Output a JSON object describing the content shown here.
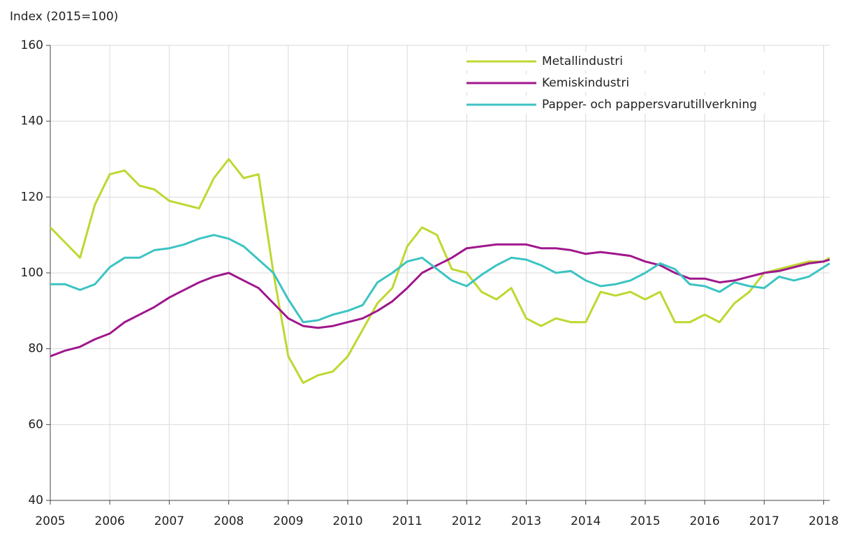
{
  "chart_data": {
    "type": "line",
    "y_label": "Index (2015=100)",
    "x": [
      2005,
      2005.25,
      2005.5,
      2005.75,
      2006,
      2006.25,
      2006.5,
      2006.75,
      2007,
      2007.25,
      2007.5,
      2007.75,
      2008,
      2008.25,
      2008.5,
      2008.75,
      2009,
      2009.25,
      2009.5,
      2009.75,
      2010,
      2010.25,
      2010.5,
      2010.75,
      2011,
      2011.25,
      2011.5,
      2011.75,
      2012,
      2012.25,
      2012.5,
      2012.75,
      2013,
      2013.25,
      2013.5,
      2013.75,
      2014,
      2014.25,
      2014.5,
      2014.75,
      2015,
      2015.25,
      2015.5,
      2015.75,
      2016,
      2016.25,
      2016.5,
      2016.75,
      2017,
      2017.25,
      2017.5,
      2017.75,
      2018,
      2018.1
    ],
    "series": [
      {
        "name": "Metallindustri",
        "color": "#bfd730",
        "values": [
          112,
          108,
          104,
          118,
          126,
          127,
          123,
          122,
          119,
          118,
          117,
          125,
          130,
          125,
          126,
          100,
          78,
          71,
          73,
          74,
          78,
          85,
          92,
          96,
          107,
          112,
          110,
          101,
          100,
          95,
          93,
          96,
          88,
          86,
          88,
          87,
          87,
          95,
          94,
          95,
          93,
          95,
          87,
          87,
          89,
          87,
          92,
          95,
          100,
          101,
          102,
          103,
          103,
          104
        ]
      },
      {
        "name": "Kemiskindustri",
        "color": "#a0178c",
        "values": [
          78,
          79.5,
          80.5,
          82.5,
          84,
          87,
          89,
          91,
          93.5,
          95.5,
          97.5,
          99,
          100,
          98,
          96,
          92,
          88,
          86,
          85.5,
          86,
          87,
          88,
          90,
          92.5,
          96,
          100,
          102,
          104,
          106.5,
          107,
          107.5,
          107.5,
          107.5,
          106.5,
          106.5,
          106,
          105,
          105.5,
          105,
          104.5,
          103,
          102,
          100,
          98.5,
          98.5,
          97.5,
          98,
          99,
          100,
          100.5,
          101.5,
          102.5,
          103,
          103.5
        ]
      },
      {
        "name": "Papper- och pappersvarutillverkning",
        "color": "#3cc3c3",
        "values": [
          97,
          97,
          95.5,
          97,
          101.5,
          104,
          104,
          106,
          106.5,
          107.5,
          109,
          110,
          109,
          107,
          103.5,
          100,
          93,
          87,
          87.5,
          89,
          90,
          91.5,
          97.5,
          100,
          103,
          104,
          101,
          98,
          96.5,
          99.5,
          102,
          104,
          103.5,
          102,
          100,
          100.5,
          98,
          96.5,
          97,
          98,
          100,
          102.5,
          101,
          97,
          96.5,
          95,
          97.5,
          96.5,
          96,
          99,
          98,
          99,
          101.5,
          102.5
        ]
      }
    ],
    "xlim": [
      2005,
      2018.1
    ],
    "xticks": [
      2005,
      2006,
      2007,
      2008,
      2009,
      2010,
      2011,
      2012,
      2013,
      2014,
      2015,
      2016,
      2017,
      2018
    ],
    "ylim": [
      40,
      160
    ],
    "yticks": [
      40,
      60,
      80,
      100,
      120,
      140,
      160
    ],
    "grid": true,
    "legend": "upper-right"
  }
}
